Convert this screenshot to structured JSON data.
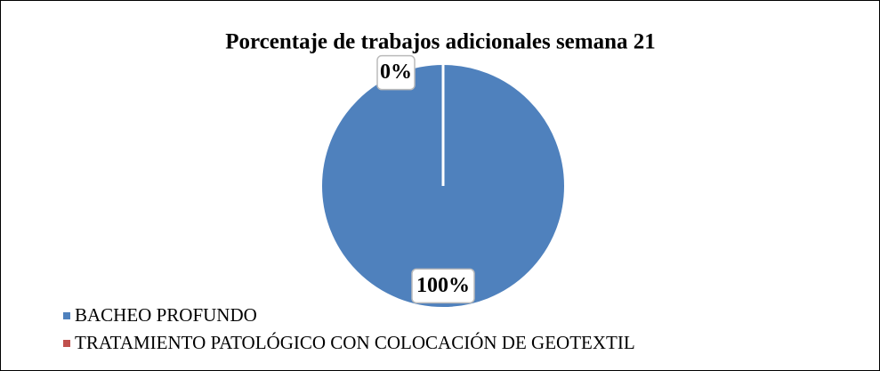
{
  "chart_data": {
    "type": "pie",
    "title": "Porcentaje de trabajos adicionales semana 21",
    "categories": [
      "BACHEO PROFUNDO",
      "TRATAMIENTO PATOLÓGICO CON COLOCACIÓN DE GEOTEXTIL"
    ],
    "values": [
      100,
      0
    ],
    "value_labels": [
      "100%",
      "0%"
    ],
    "colors": [
      "#4f81bd",
      "#c0504d"
    ],
    "legend": "bottom-left"
  }
}
